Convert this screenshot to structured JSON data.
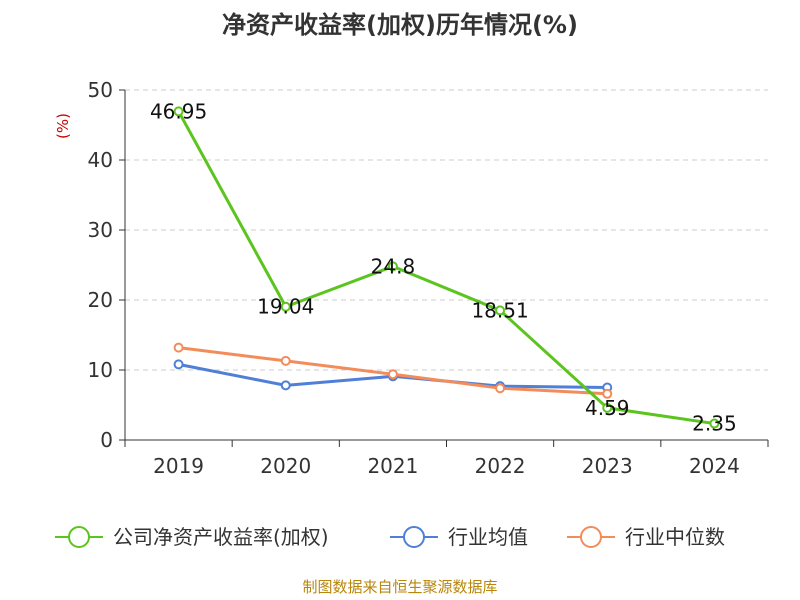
{
  "chart_data": {
    "type": "line",
    "title": "净资产收益率(加权)历年情况(%)",
    "ylabel": "(%)",
    "categories": [
      "2019",
      "2020",
      "2021",
      "2022",
      "2023",
      "2024"
    ],
    "ylim": [
      0,
      50
    ],
    "yticks": [
      0,
      10,
      20,
      30,
      40,
      50
    ],
    "grid": true,
    "legend_position": "bottom",
    "series": [
      {
        "name": "公司净资产收益率(加权)",
        "color": "#5cc41f",
        "values": [
          46.95,
          19.04,
          24.8,
          18.51,
          4.59,
          2.35
        ],
        "labels": [
          "46.95",
          "19.04",
          "24.8",
          "18.51",
          "4.59",
          "2.35"
        ]
      },
      {
        "name": "行业均值",
        "color": "#4f7fd6",
        "values": [
          10.8,
          7.8,
          9.1,
          7.7,
          7.5,
          null
        ]
      },
      {
        "name": "行业中位数",
        "color": "#f28c5a",
        "values": [
          13.2,
          11.3,
          9.4,
          7.4,
          6.6,
          null
        ]
      }
    ]
  },
  "source": "制图数据来自恒生聚源数据库"
}
